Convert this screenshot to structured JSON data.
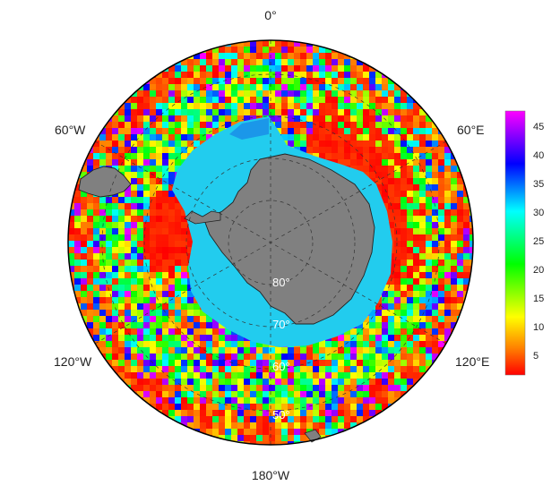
{
  "map": {
    "projection": "south-polar-stereographic",
    "longitude_labels": {
      "top": "0°",
      "upper_left": "60°W",
      "upper_right": "60°E",
      "lower_left": "120°W",
      "lower_right": "120°E",
      "bottom": "180°W"
    },
    "latitude_labels": [
      "80°",
      "70°",
      "60°",
      "50°"
    ],
    "land_color": "#808080",
    "coast_color": "#222222",
    "graticule_style": "dashed"
  },
  "colorbar": {
    "ticks": [
      "45",
      "40",
      "35",
      "30",
      "25",
      "20",
      "15",
      "10",
      "5"
    ],
    "min": 1,
    "max": 48,
    "palette": [
      "#ff0000",
      "#ff7f00",
      "#ffff00",
      "#00ff00",
      "#00ffff",
      "#0000ff",
      "#ff00ff"
    ]
  }
}
